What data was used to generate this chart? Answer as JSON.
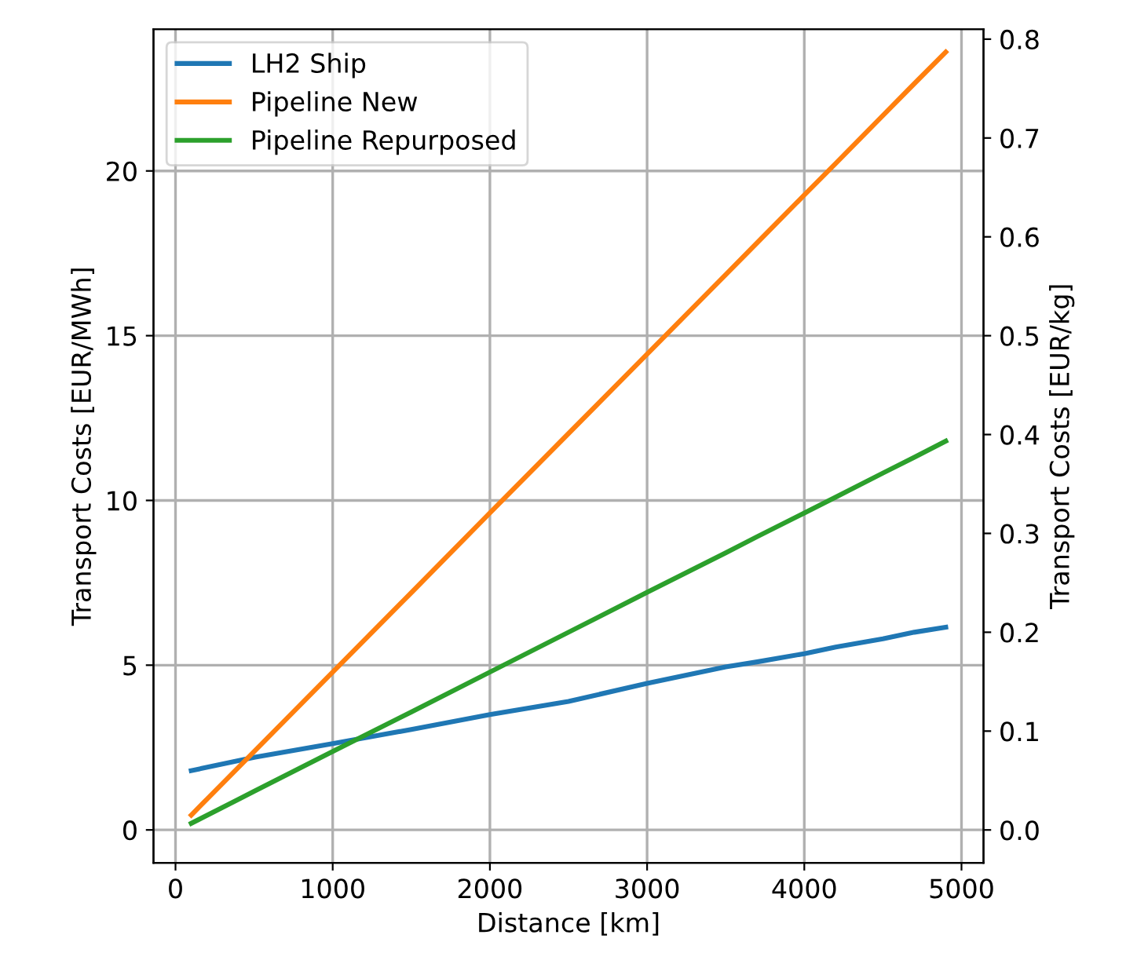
{
  "chart_data": {
    "type": "line",
    "xlabel": "Distance [km]",
    "ylabel": "Transport Costs [EUR/MWh]",
    "y2label": "Transport Costs [EUR/kg]",
    "x": [
      100,
      500,
      1000,
      1500,
      2000,
      2500,
      3000,
      3500,
      3700,
      4000,
      4200,
      4500,
      4700,
      4900
    ],
    "series": [
      {
        "name": "LH2 Ship",
        "color": "#1f77b4",
        "values": [
          1.8,
          2.2,
          2.62,
          3.05,
          3.5,
          3.9,
          4.45,
          4.95,
          5.1,
          5.35,
          5.55,
          5.8,
          6.0,
          6.15
        ]
      },
      {
        "name": "Pipeline New",
        "color": "#ff7f0e",
        "values": [
          0.45,
          2.38,
          4.79,
          7.2,
          9.62,
          12.03,
          14.44,
          16.85,
          17.82,
          19.27,
          20.23,
          21.68,
          22.65,
          23.61
        ]
      },
      {
        "name": "Pipeline Repurposed",
        "color": "#2ca02c",
        "values": [
          0.2,
          1.17,
          2.38,
          3.58,
          4.79,
          6.0,
          7.21,
          8.41,
          8.9,
          9.62,
          10.1,
          10.83,
          11.31,
          11.8
        ]
      }
    ],
    "xlim": [
      -140,
      5140
    ],
    "xticks": [
      0,
      1000,
      2000,
      3000,
      4000,
      5000
    ],
    "ylim": [
      -1.0,
      24.3
    ],
    "yticks": [
      0,
      5,
      10,
      15,
      20
    ],
    "y2lim": [
      -0.0333,
      0.81
    ],
    "y2ticks": [
      {
        "value": 0,
        "label": "0.0"
      },
      0.1,
      0.2,
      0.3,
      0.4,
      0.5,
      0.6,
      0.7,
      0.8
    ],
    "grid": true,
    "legend": "top left"
  }
}
